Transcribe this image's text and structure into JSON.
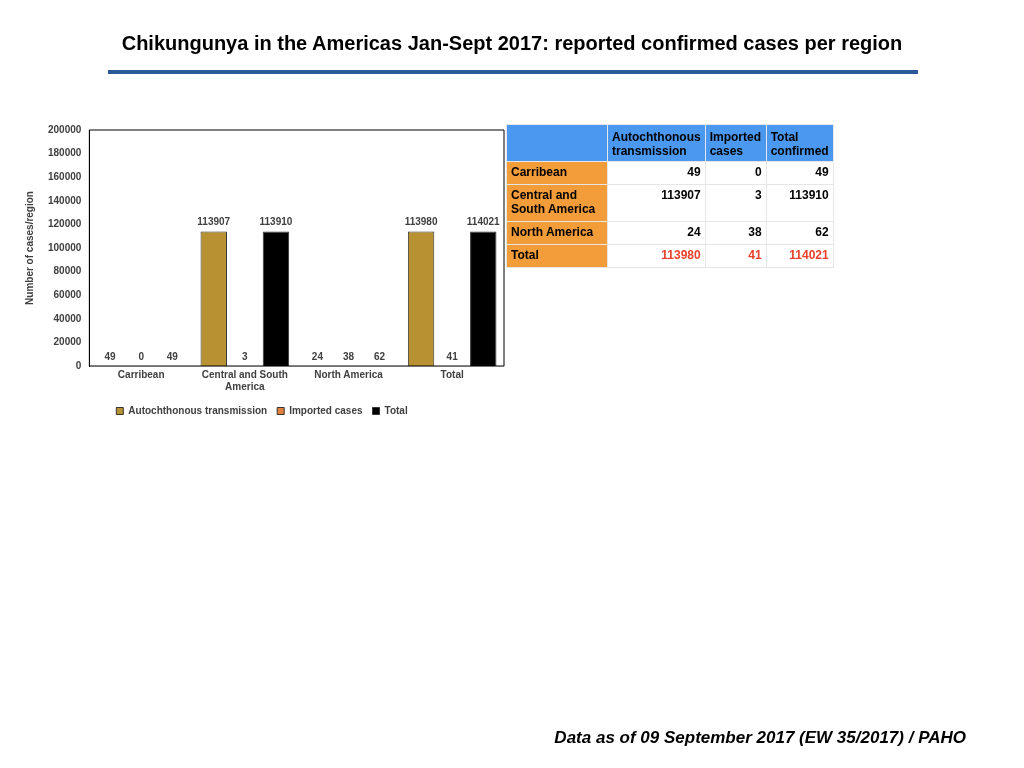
{
  "chart_data": [
    {
      "type": "bar",
      "title": "Chikungunya in the Americas Jan-Sept 2017: reported confirmed cases per region",
      "ylabel": "Number of cases/region",
      "categories": [
        "Carribean",
        "Central and South America",
        "North America",
        "Total"
      ],
      "series": [
        {
          "name": "Autochthonous transmission",
          "color": "#b89232",
          "values": [
            49,
            113907,
            24,
            113980
          ]
        },
        {
          "name": "Imported cases",
          "color": "#e0803a",
          "values": [
            0,
            3,
            38,
            41
          ]
        },
        {
          "name": "Total",
          "color": "#000000",
          "values": [
            49,
            113910,
            62,
            114021
          ]
        }
      ],
      "ylim": [
        0,
        200000
      ],
      "yticks": [
        0,
        20000,
        40000,
        60000,
        80000,
        100000,
        120000,
        140000,
        160000,
        180000,
        200000
      ],
      "grid": false,
      "legend": "bottom",
      "data_labels": true,
      "annotations": [
        "Data as of 09 September 2017 (EW 35/2017) / PAHO"
      ]
    },
    {
      "type": "other",
      "categories": [
        "Carribean",
        "Central and South America",
        "North America",
        "Total"
      ],
      "series": [
        {
          "name": "Autochthonous transmission",
          "values": [
            49,
            113907,
            24,
            113980
          ]
        },
        {
          "name": "Imported cases",
          "values": [
            0,
            3,
            38,
            41
          ]
        },
        {
          "name": "Total confirmed",
          "values": [
            49,
            113910,
            62,
            114021
          ]
        }
      ],
      "data_labels": true
    }
  ]
}
